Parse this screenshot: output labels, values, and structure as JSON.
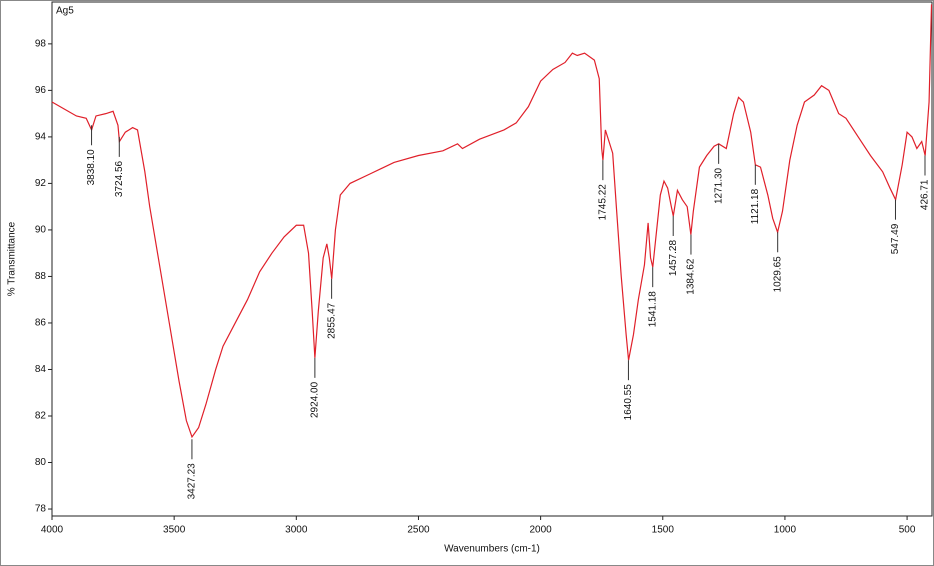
{
  "chart_data": {
    "type": "line",
    "x_label": "Wavenumbers (cm-1)",
    "y_label": "% Transmittance",
    "xlim": [
      4000,
      398
    ],
    "ylim": [
      77.7,
      99.8
    ],
    "xticks": [
      4000,
      3500,
      3000,
      2500,
      2000,
      1500,
      1000,
      500
    ],
    "yticks": [
      78,
      80,
      82,
      84,
      86,
      88,
      90,
      92,
      94,
      96,
      98
    ],
    "grid": false,
    "series": [
      {
        "name": "Ag5",
        "color": "#e0202a",
        "x": [
          4000,
          3950,
          3900,
          3860,
          3838,
          3820,
          3780,
          3750,
          3730,
          3724,
          3700,
          3670,
          3650,
          3620,
          3600,
          3560,
          3520,
          3480,
          3450,
          3427,
          3400,
          3370,
          3330,
          3300,
          3250,
          3200,
          3150,
          3100,
          3050,
          3000,
          2970,
          2950,
          2935,
          2924,
          2910,
          2890,
          2875,
          2865,
          2855,
          2840,
          2820,
          2780,
          2700,
          2600,
          2500,
          2400,
          2340,
          2320,
          2250,
          2200,
          2150,
          2100,
          2050,
          2000,
          1950,
          1900,
          1870,
          1850,
          1820,
          1780,
          1760,
          1750,
          1745,
          1735,
          1720,
          1705,
          1690,
          1670,
          1650,
          1640,
          1620,
          1600,
          1575,
          1560,
          1550,
          1541,
          1530,
          1510,
          1495,
          1480,
          1465,
          1457,
          1440,
          1420,
          1400,
          1385,
          1375,
          1350,
          1320,
          1290,
          1271,
          1240,
          1210,
          1190,
          1170,
          1140,
          1121,
          1100,
          1070,
          1050,
          1030,
          1010,
          980,
          950,
          920,
          880,
          850,
          820,
          800,
          780,
          750,
          700,
          650,
          600,
          570,
          547,
          520,
          500,
          480,
          460,
          440,
          426,
          410,
          400
        ],
        "values": [
          95.5,
          95.2,
          94.9,
          94.8,
          94.3,
          94.9,
          95.0,
          95.1,
          94.5,
          93.8,
          94.2,
          94.4,
          94.3,
          92.5,
          91.0,
          88.5,
          86.0,
          83.5,
          81.8,
          81.1,
          81.5,
          82.5,
          84.0,
          85.0,
          86.0,
          87.0,
          88.2,
          89.0,
          89.7,
          90.2,
          90.2,
          89.0,
          86.5,
          84.5,
          86.5,
          88.8,
          89.4,
          88.8,
          87.9,
          90.0,
          91.5,
          92.0,
          92.4,
          92.9,
          93.2,
          93.4,
          93.7,
          93.5,
          93.9,
          94.1,
          94.3,
          94.6,
          95.3,
          96.4,
          96.9,
          97.2,
          97.6,
          97.5,
          97.6,
          97.3,
          96.5,
          93.5,
          93.0,
          94.3,
          93.8,
          93.3,
          91.0,
          88.0,
          85.5,
          84.4,
          85.5,
          87.0,
          88.5,
          90.3,
          88.8,
          88.4,
          89.5,
          91.5,
          92.1,
          91.8,
          91.0,
          90.6,
          91.7,
          91.3,
          91.0,
          89.8,
          90.8,
          92.7,
          93.2,
          93.6,
          93.7,
          93.5,
          95.0,
          95.7,
          95.5,
          94.2,
          92.8,
          92.7,
          91.5,
          90.5,
          89.9,
          90.8,
          93.0,
          94.5,
          95.5,
          95.8,
          96.2,
          96.0,
          95.5,
          95.0,
          94.8,
          94.0,
          93.2,
          92.5,
          91.8,
          91.3,
          92.8,
          94.2,
          94.0,
          93.5,
          93.8,
          93.2,
          95.5,
          99.7
        ]
      }
    ],
    "annotations": [
      {
        "x": 3838.1,
        "y": 94.5,
        "label": "3838.10"
      },
      {
        "x": 3724.56,
        "y": 94.0,
        "label": "3724.56"
      },
      {
        "x": 3427.23,
        "y": 81.0,
        "label": "3427.23"
      },
      {
        "x": 2924,
        "y": 84.5,
        "label": "2924.00"
      },
      {
        "x": 2855.47,
        "y": 87.9,
        "label": "2855.47"
      },
      {
        "x": 1745.22,
        "y": 93.0,
        "label": "1745.22"
      },
      {
        "x": 1640.55,
        "y": 84.4,
        "label": "1640.55"
      },
      {
        "x": 1541.18,
        "y": 88.4,
        "label": "1541.18"
      },
      {
        "x": 1457.28,
        "y": 90.6,
        "label": "1457.28"
      },
      {
        "x": 1384.62,
        "y": 89.8,
        "label": "1384.62"
      },
      {
        "x": 1271.3,
        "y": 93.7,
        "label": "1271.30"
      },
      {
        "x": 1121.18,
        "y": 92.8,
        "label": "1121.18"
      },
      {
        "x": 1029.65,
        "y": 89.9,
        "label": "1029.65"
      },
      {
        "x": 547.49,
        "y": 91.3,
        "label": "547.49"
      },
      {
        "x": 426.71,
        "y": 93.2,
        "label": "426.71"
      }
    ]
  }
}
